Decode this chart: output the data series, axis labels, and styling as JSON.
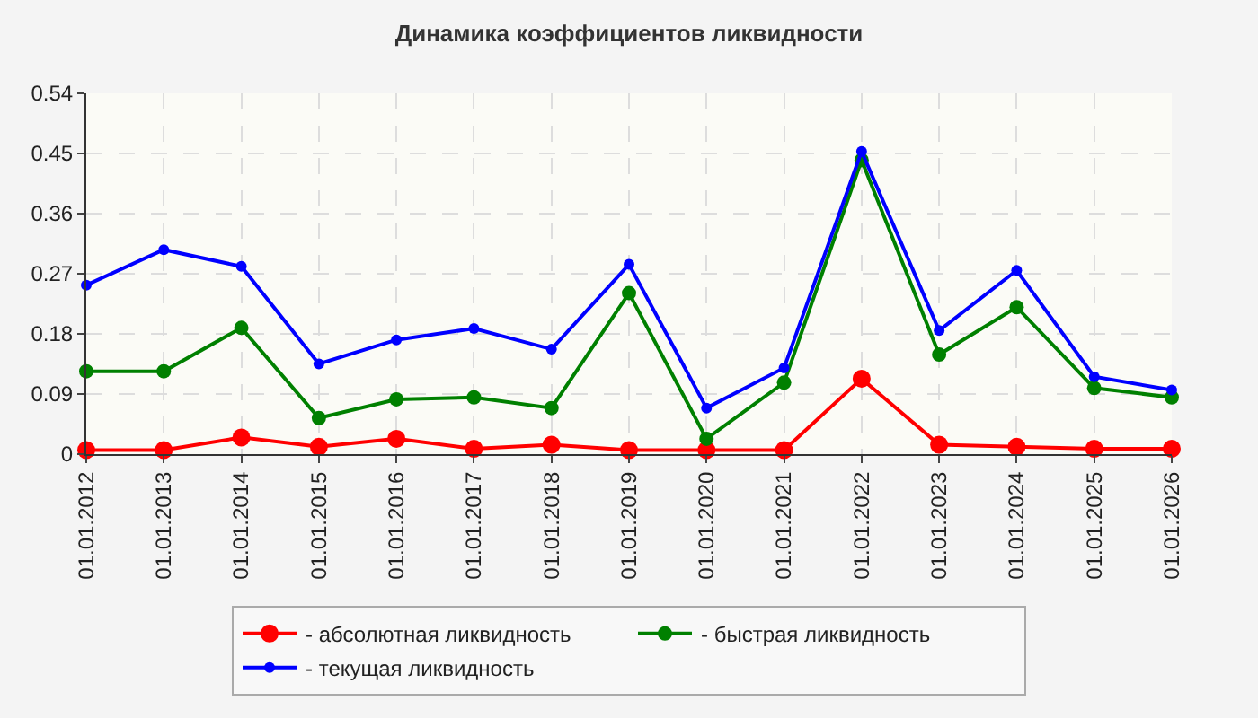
{
  "chart_data": {
    "type": "line",
    "title": "Динамика коэффициентов ликвидности",
    "categories": [
      "01.01.2012",
      "01.01.2013",
      "01.01.2014",
      "01.01.2015",
      "01.01.2016",
      "01.01.2017",
      "01.01.2018",
      "01.01.2019",
      "01.01.2020",
      "01.01.2021",
      "01.01.2022",
      "01.01.2023",
      "01.01.2024",
      "01.01.2025",
      "01.01.2026"
    ],
    "series": [
      {
        "name": "- абсолютная ликвидность",
        "color": "#ff0000",
        "values": [
          0.006,
          0.006,
          0.025,
          0.011,
          0.023,
          0.008,
          0.014,
          0.006,
          0.006,
          0.006,
          0.113,
          0.014,
          0.011,
          0.008,
          0.008
        ]
      },
      {
        "name": "- быстрая ликвидность",
        "color": "#008000",
        "values": [
          0.124,
          0.124,
          0.189,
          0.054,
          0.082,
          0.085,
          0.069,
          0.241,
          0.023,
          0.107,
          0.44,
          0.149,
          0.22,
          0.099,
          0.085
        ]
      },
      {
        "name": "- текущая ликвидность",
        "color": "#0000ff",
        "values": [
          0.253,
          0.306,
          0.281,
          0.135,
          0.171,
          0.188,
          0.157,
          0.284,
          0.069,
          0.129,
          0.453,
          0.185,
          0.275,
          0.116,
          0.096
        ]
      }
    ],
    "ylim": [
      0,
      0.54
    ],
    "yticks": [
      0,
      0.09,
      0.18,
      0.27,
      0.36,
      0.45,
      0.54
    ],
    "grid": true,
    "legend": "bottom",
    "marker": "circle",
    "line_style": "solid"
  }
}
